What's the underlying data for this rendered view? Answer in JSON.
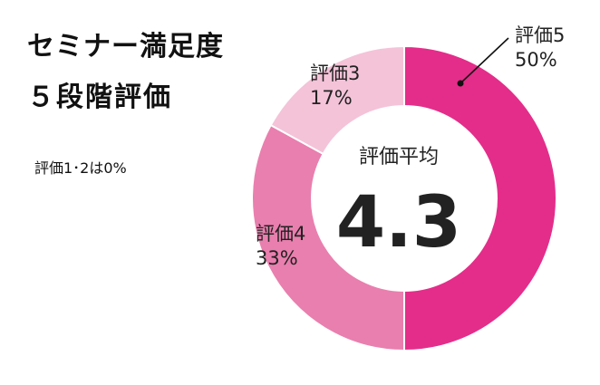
{
  "title_lines": [
    "セミナー満足度",
    "５段階評価"
  ],
  "note": "評価1･2は0%",
  "center": {
    "label": "評価平均",
    "value": "4.3"
  },
  "colors": {
    "rating5": "#e42d8a",
    "rating4": "#e97fae",
    "rating3": "#f4c3d8",
    "stroke": "#ffffff",
    "leader": "#111111"
  },
  "chart_data": {
    "type": "pie",
    "variant": "donut",
    "categories": [
      "評価5",
      "評価4",
      "評価3"
    ],
    "values": [
      50,
      33,
      17
    ],
    "unit": "%",
    "labels": [
      {
        "name": "評価5",
        "pct": "50%"
      },
      {
        "name": "評価4",
        "pct": "33%"
      },
      {
        "name": "評価3",
        "pct": "17%"
      }
    ],
    "center_label": "評価平均",
    "center_value": 4.3
  }
}
